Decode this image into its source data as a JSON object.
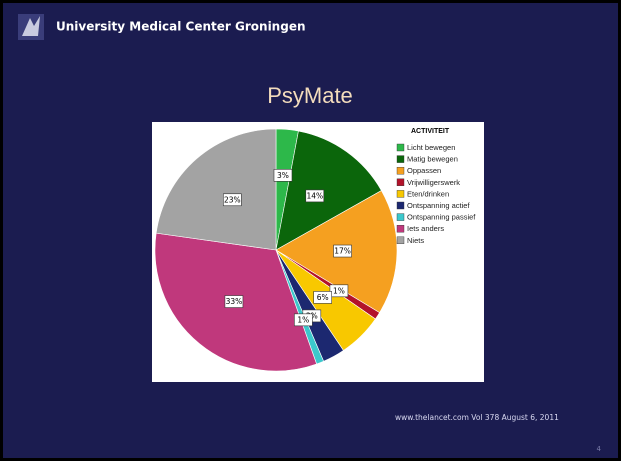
{
  "header": {
    "institution": "University Medical Center Groningen"
  },
  "slide_title": "PsyMate",
  "chart_data": {
    "type": "pie",
    "legend_title": "ACTIVITEIT",
    "categories": [
      "Licht bewegen",
      "Matig bewegen",
      "Oppassen",
      "Vrijwilligerswerk",
      "Eten/drinken",
      "Ontspanning actief",
      "Ontspanning passief",
      "Iets anders",
      "Niets"
    ],
    "values": [
      3,
      14,
      17,
      1,
      6,
      3,
      1,
      33,
      23
    ],
    "value_labels": [
      "3%",
      "14%",
      "17%",
      "1%",
      "6%",
      "3%",
      "1%",
      "33%",
      "23%"
    ],
    "colors": [
      "#2db84a",
      "#0b660b",
      "#f5a020",
      "#b3122a",
      "#f8c800",
      "#1c2870",
      "#3cc8cc",
      "#c0387c",
      "#a3a3a3"
    ],
    "legend": "right"
  },
  "footer": {
    "source": "www.thelancet.com Vol 378 August 6, 2011",
    "page": "4"
  }
}
